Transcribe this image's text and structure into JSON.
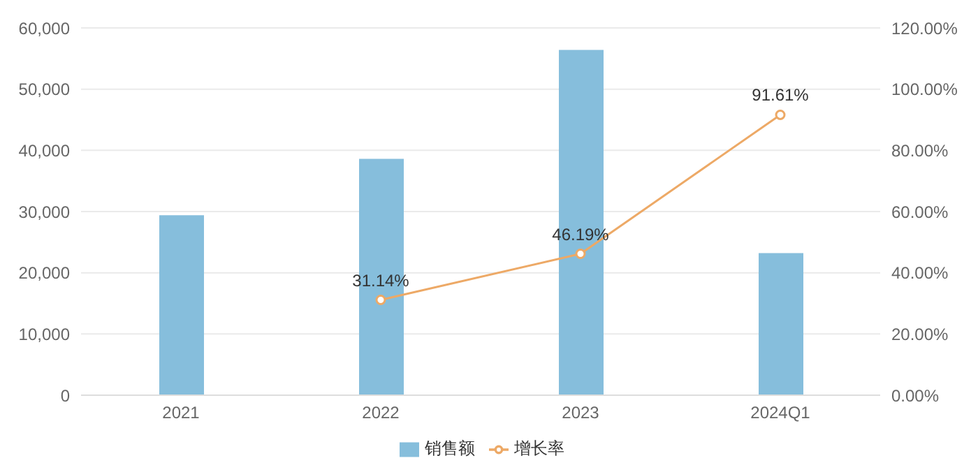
{
  "chart_data": {
    "type": "bar",
    "categories": [
      "2021",
      "2022",
      "2023",
      "2024Q1"
    ],
    "series": [
      {
        "name": "销售额",
        "color": "#86bedc",
        "values": [
          29400,
          38600,
          56400,
          23200
        ]
      },
      {
        "name": "增长率",
        "type": "line",
        "axis": "y2",
        "color": "#eda966",
        "values": [
          null,
          31.14,
          46.19,
          91.61
        ],
        "value_labels": [
          null,
          "31.14%",
          "46.19%",
          "91.61%"
        ]
      }
    ],
    "ylim": [
      0,
      60000
    ],
    "yticks": [
      {
        "value": 0,
        "label": "0"
      },
      {
        "value": 10000,
        "label": "10,000"
      },
      {
        "value": 20000,
        "label": "20,000"
      },
      {
        "value": 30000,
        "label": "30,000"
      },
      {
        "value": 40000,
        "label": "40,000"
      },
      {
        "value": 50000,
        "label": "50,000"
      },
      {
        "value": 60000,
        "label": "60,000"
      }
    ],
    "y2lim": [
      0,
      120
    ],
    "y2ticks": [
      {
        "value": 0,
        "label": "0.00%"
      },
      {
        "value": 20,
        "label": "20.00%"
      },
      {
        "value": 40,
        "label": "40.00%"
      },
      {
        "value": 60,
        "label": "60.00%"
      },
      {
        "value": 80,
        "label": "80.00%"
      },
      {
        "value": 100,
        "label": "100.00%"
      },
      {
        "value": 120,
        "label": "120.00%"
      }
    ],
    "grid": "y",
    "legend": "bottom",
    "marker": "circle"
  }
}
